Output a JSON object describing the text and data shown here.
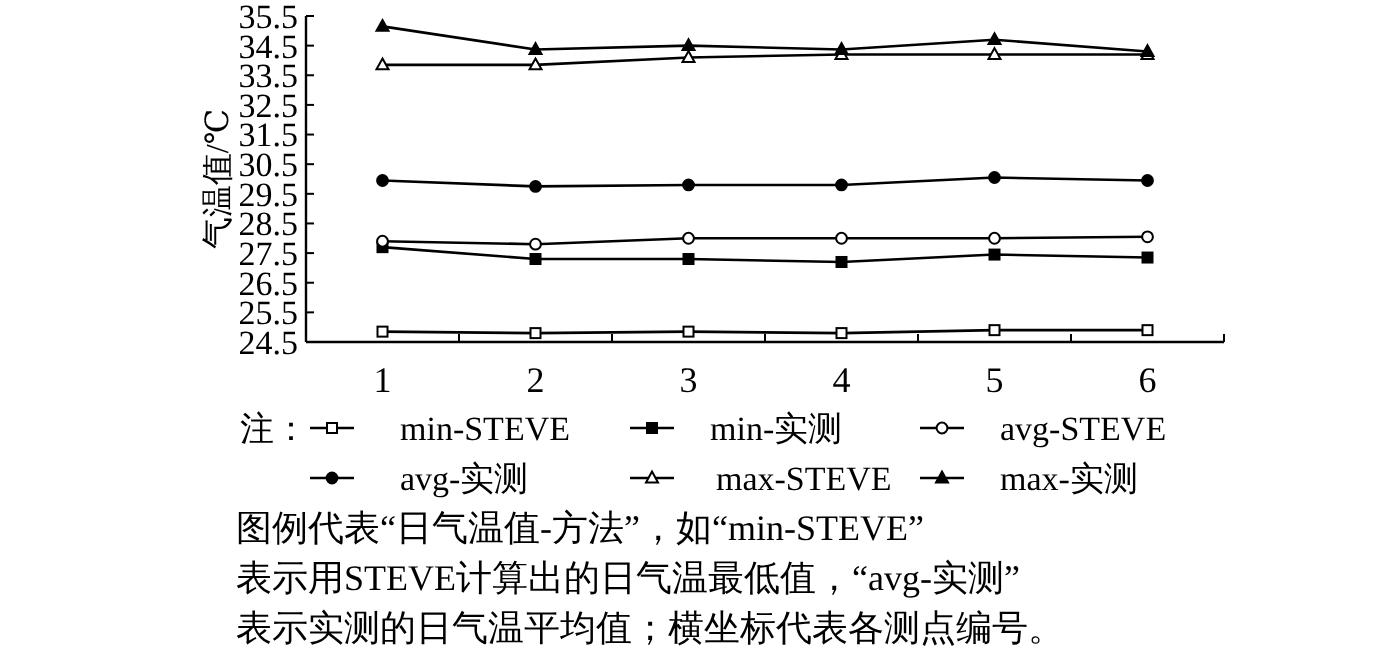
{
  "chart_data": {
    "type": "line",
    "ylabel": "气温值/℃",
    "categories": [
      "1",
      "2",
      "3",
      "4",
      "5",
      "6"
    ],
    "ylim": [
      24.5,
      35.5
    ],
    "yticks": [
      24.5,
      25.5,
      26.5,
      27.5,
      28.5,
      29.5,
      30.5,
      31.5,
      32.5,
      33.5,
      34.5,
      35.5
    ],
    "legend": "bottom",
    "legend_title": "注：",
    "grid": false,
    "line_style": "solid",
    "series": [
      {
        "name": "min-STEVE",
        "color": "#000000",
        "marker": "square",
        "values": [
          24.85,
          24.8,
          24.85,
          24.8,
          24.9,
          24.9
        ]
      },
      {
        "name": "min-实测",
        "color": "#000000",
        "marker": "square",
        "values": [
          27.7,
          27.3,
          27.3,
          27.2,
          27.45,
          27.35
        ]
      },
      {
        "name": "avg-STEVE",
        "color": "#000000",
        "marker": "circle",
        "values": [
          27.9,
          27.8,
          28.0,
          28.0,
          28.0,
          28.05
        ]
      },
      {
        "name": "avg-实测",
        "color": "#000000",
        "marker": "circle",
        "values": [
          29.95,
          29.75,
          29.8,
          29.8,
          30.05,
          29.95
        ]
      },
      {
        "name": "max-STEVE",
        "color": "#000000",
        "marker": "triangle",
        "values": [
          33.85,
          33.85,
          34.1,
          34.2,
          34.2,
          34.2
        ]
      },
      {
        "name": "max-实测",
        "color": "#000000",
        "marker": "triangle",
        "values": [
          35.15,
          34.37,
          34.5,
          34.37,
          34.7,
          34.3
        ]
      }
    ],
    "annotations": [
      "图例代表“日气温值-方法”，如“min-STEVE”",
      "表示用STEVE计算出的日气温最低值，“avg-实测”",
      "表示实测的日气温平均值；横坐标代表各测点编号。"
    ]
  }
}
